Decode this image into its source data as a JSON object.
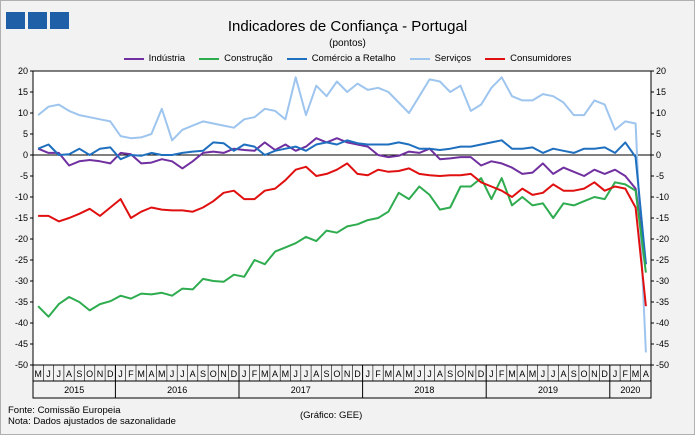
{
  "header": {
    "title": "Indicadores de Confiança - Portugal",
    "subtitle": "(pontos)"
  },
  "footer": {
    "source": "Fonte: Comissão Europeia",
    "note": "Nota: Dados ajustados de sazonalidade",
    "credit": "(Gráfico: GEE)"
  },
  "colors": {
    "industria": "#7030a0",
    "construcao": "#2eac4f",
    "comercio": "#1f6fbf",
    "servicos": "#9ec5ee",
    "consumidores": "#e01010"
  },
  "chart_data": {
    "type": "line",
    "title": "Indicadores de Confiança - Portugal",
    "subtitle": "(pontos)",
    "ylim": [
      -50,
      20
    ],
    "yticks": [
      20,
      15,
      10,
      5,
      0,
      -5,
      -10,
      -15,
      -20,
      -25,
      -30,
      -35,
      -40,
      -45,
      -50
    ],
    "grid": false,
    "legend_position": "top",
    "month_labels": [
      "M",
      "J",
      "J",
      "A",
      "S",
      "O",
      "N",
      "D",
      "J",
      "F",
      "M",
      "A",
      "M",
      "J",
      "J",
      "A",
      "S",
      "O",
      "N",
      "D",
      "J",
      "F",
      "M",
      "A",
      "M",
      "J",
      "J",
      "A",
      "S",
      "O",
      "N",
      "D",
      "J",
      "F",
      "M",
      "A",
      "M",
      "J",
      "J",
      "A",
      "S",
      "O",
      "N",
      "D",
      "J",
      "F",
      "M",
      "A",
      "M",
      "J",
      "J",
      "A",
      "S",
      "O",
      "N",
      "D",
      "J",
      "F",
      "M",
      "A"
    ],
    "year_labels": [
      {
        "year": "2015",
        "start": 0,
        "end": 7
      },
      {
        "year": "2016",
        "start": 8,
        "end": 19
      },
      {
        "year": "2017",
        "start": 20,
        "end": 31
      },
      {
        "year": "2018",
        "start": 32,
        "end": 43
      },
      {
        "year": "2019",
        "start": 44,
        "end": 55
      },
      {
        "year": "2020",
        "start": 56,
        "end": 59
      }
    ],
    "series": [
      {
        "name": "Indústria",
        "key": "industria",
        "values": [
          1.5,
          0.5,
          0.5,
          -2.5,
          -1.5,
          -1.2,
          -1.5,
          -2.0,
          0.5,
          0.2,
          -2.0,
          -1.8,
          -1.0,
          -1.5,
          -3.2,
          -1.5,
          0.5,
          0.8,
          0.5,
          1.5,
          1.2,
          1.0,
          3.0,
          1.2,
          2.5,
          1.0,
          2.0,
          4.0,
          3.0,
          4.0,
          3.0,
          2.5,
          2.0,
          0.0,
          -0.5,
          -0.2,
          0.8,
          0.5,
          1.5,
          -1.0,
          -0.8,
          -0.5,
          -0.5,
          -2.5,
          -1.5,
          -2.0,
          -3.0,
          -4.5,
          -4.2,
          -2.0,
          -4.5,
          -3.0,
          -4.0,
          -5.0,
          -3.5,
          -4.5,
          -3.5,
          -5.0,
          -8.0,
          -26.0
        ]
      },
      {
        "name": "Construção",
        "key": "construcao",
        "values": [
          -36.0,
          -38.5,
          -35.5,
          -33.8,
          -35.0,
          -37.0,
          -35.5,
          -34.8,
          -33.5,
          -34.2,
          -33.0,
          -33.2,
          -32.8,
          -33.5,
          -31.8,
          -32.0,
          -29.5,
          -30.0,
          -30.2,
          -28.5,
          -29.0,
          -25.0,
          -26.0,
          -23.0,
          -22.0,
          -21.0,
          -19.5,
          -20.5,
          -18.0,
          -18.5,
          -17.0,
          -16.5,
          -15.5,
          -15.0,
          -13.5,
          -9.0,
          -10.5,
          -7.5,
          -9.5,
          -13.0,
          -12.5,
          -7.5,
          -7.5,
          -5.5,
          -10.5,
          -5.5,
          -12.0,
          -10.0,
          -12.0,
          -11.5,
          -15.0,
          -11.5,
          -12.0,
          -11.0,
          -10.0,
          -10.5,
          -6.5,
          -7.0,
          -8.5,
          -28.0
        ]
      },
      {
        "name": "Comércio a Retalho",
        "key": "comercio",
        "values": [
          1.5,
          2.5,
          0.0,
          0.2,
          1.5,
          0.0,
          1.5,
          1.8,
          -1.0,
          0.0,
          -0.2,
          0.5,
          0.0,
          0.0,
          0.5,
          0.8,
          1.0,
          3.0,
          2.8,
          1.0,
          2.5,
          2.0,
          0.0,
          1.0,
          1.5,
          2.0,
          1.0,
          2.5,
          3.0,
          2.5,
          3.5,
          2.8,
          2.5,
          2.5,
          2.5,
          3.0,
          2.5,
          1.5,
          1.5,
          1.2,
          1.5,
          2.0,
          2.0,
          2.5,
          3.0,
          3.5,
          1.5,
          1.5,
          1.8,
          0.5,
          1.5,
          1.0,
          0.5,
          1.5,
          1.5,
          1.8,
          0.5,
          3.0,
          -0.5,
          -26.0
        ]
      },
      {
        "name": "Serviços",
        "key": "servicos",
        "values": [
          9.5,
          11.5,
          12.0,
          10.5,
          9.5,
          9.0,
          8.5,
          8.0,
          4.5,
          4.0,
          4.2,
          5.0,
          11.0,
          3.5,
          6.0,
          7.0,
          8.0,
          7.5,
          7.0,
          6.5,
          8.5,
          9.0,
          11.0,
          10.5,
          8.5,
          18.5,
          9.5,
          16.5,
          14.0,
          17.5,
          15.0,
          17.0,
          15.5,
          16.0,
          15.0,
          12.5,
          10.0,
          14.0,
          18.0,
          17.5,
          15.0,
          16.5,
          10.5,
          12.0,
          16.0,
          18.5,
          14.0,
          13.0,
          13.0,
          14.5,
          14.0,
          12.5,
          9.5,
          9.5,
          13.0,
          12.0,
          6.0,
          8.0,
          7.5,
          -47.0
        ]
      },
      {
        "name": "Consumidores",
        "key": "consumidores",
        "values": [
          -14.5,
          -14.5,
          -15.8,
          -15.0,
          -14.0,
          -12.8,
          -14.5,
          -12.5,
          -10.5,
          -15.0,
          -13.5,
          -12.5,
          -13.0,
          -13.2,
          -13.2,
          -13.5,
          -12.5,
          -11.0,
          -9.0,
          -8.5,
          -10.5,
          -10.5,
          -8.5,
          -8.0,
          -6.0,
          -3.5,
          -2.8,
          -5.0,
          -4.5,
          -3.5,
          -2.0,
          -4.5,
          -4.8,
          -3.5,
          -4.0,
          -3.8,
          -3.2,
          -4.5,
          -4.8,
          -5.0,
          -4.8,
          -4.8,
          -4.5,
          -6.5,
          -7.5,
          -8.5,
          -10.0,
          -8.0,
          -9.5,
          -9.0,
          -7.0,
          -8.5,
          -8.5,
          -8.0,
          -6.5,
          -8.5,
          -7.5,
          -8.0,
          -12.5,
          -36.0
        ]
      }
    ]
  }
}
